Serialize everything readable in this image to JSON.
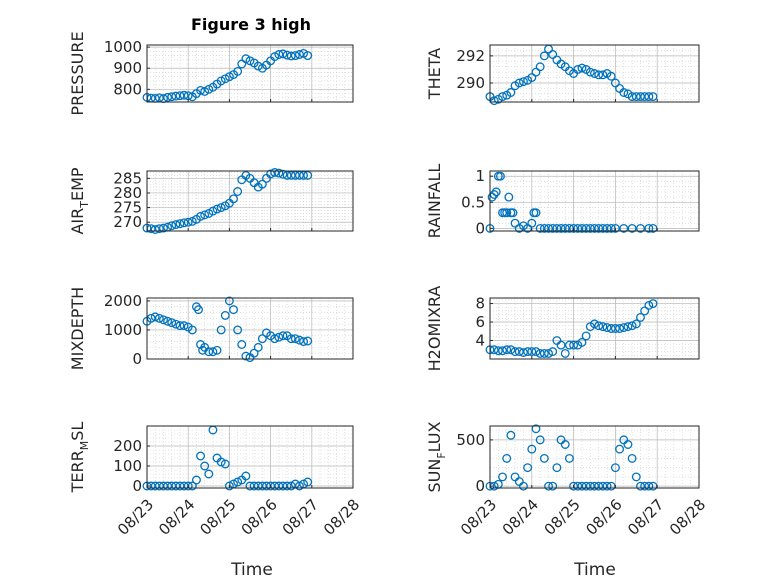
{
  "figure_title": "Figure 3 high",
  "marker_color": "#0072BD",
  "time_ticks": [
    "08/23",
    "08/24",
    "08/25",
    "08/26",
    "08/27",
    "08/28"
  ],
  "chart_data": [
    {
      "id": "pressure",
      "type": "scatter",
      "ylabel": "PRESSURE",
      "ylabel_main": "PRESSURE",
      "ylabel_sub": "",
      "ylabel_tail": "",
      "ylim": [
        740,
        1010
      ],
      "yticks": [
        800,
        900,
        1000
      ],
      "xlim": [
        0,
        5
      ],
      "grid": "on-minor",
      "x": [
        0,
        0.1,
        0.2,
        0.3,
        0.4,
        0.5,
        0.6,
        0.7,
        0.8,
        0.9,
        1.0,
        1.1,
        1.2,
        1.3,
        1.4,
        1.5,
        1.6,
        1.7,
        1.8,
        1.9,
        2.0,
        2.1,
        2.2,
        2.3,
        2.4,
        2.5,
        2.6,
        2.7,
        2.8,
        2.9,
        3.0,
        3.1,
        3.2,
        3.3,
        3.4,
        3.5,
        3.6,
        3.7,
        3.8,
        3.9
      ],
      "y": [
        762,
        758,
        757,
        760,
        756,
        762,
        765,
        768,
        770,
        772,
        770,
        765,
        780,
        795,
        790,
        800,
        810,
        825,
        840,
        850,
        860,
        870,
        885,
        920,
        945,
        935,
        925,
        910,
        900,
        915,
        935,
        955,
        965,
        968,
        962,
        958,
        960,
        965,
        970,
        960
      ]
    },
    {
      "id": "theta",
      "type": "scatter",
      "ylabel": "THETA",
      "ylabel_main": "THETA",
      "ylabel_sub": "",
      "ylabel_tail": "",
      "ylim": [
        288.6,
        292.8
      ],
      "yticks": [
        290,
        292
      ],
      "xlim": [
        0,
        5
      ],
      "grid": "on-minor",
      "x": [
        0,
        0.1,
        0.2,
        0.3,
        0.4,
        0.5,
        0.6,
        0.7,
        0.8,
        0.9,
        1.0,
        1.1,
        1.2,
        1.3,
        1.4,
        1.5,
        1.6,
        1.7,
        1.8,
        1.9,
        2.0,
        2.1,
        2.2,
        2.3,
        2.4,
        2.5,
        2.6,
        2.7,
        2.8,
        2.9,
        3.0,
        3.1,
        3.2,
        3.3,
        3.4,
        3.5,
        3.6,
        3.7,
        3.8,
        3.9
      ],
      "y": [
        289.0,
        288.7,
        288.8,
        289.0,
        289.1,
        289.3,
        289.8,
        290.0,
        290.1,
        290.2,
        290.4,
        290.8,
        291.2,
        292.0,
        292.5,
        292.1,
        291.7,
        291.4,
        291.2,
        290.9,
        290.7,
        291.0,
        291.1,
        291.0,
        290.8,
        290.7,
        290.6,
        290.6,
        290.7,
        290.5,
        290.0,
        289.6,
        289.3,
        289.2,
        289.0,
        289.0,
        289.0,
        289.0,
        289.0,
        289.0
      ]
    },
    {
      "id": "air_temp",
      "type": "scatter",
      "ylabel": "AIR_TEMP",
      "ylabel_main": "AIR",
      "ylabel_sub": "T",
      "ylabel_tail": "EMP",
      "ylim": [
        267,
        287.5
      ],
      "yticks": [
        270,
        275,
        280,
        285
      ],
      "xlim": [
        0,
        5
      ],
      "grid": "on-minor",
      "x": [
        0,
        0.1,
        0.2,
        0.3,
        0.4,
        0.5,
        0.6,
        0.7,
        0.8,
        0.9,
        1.0,
        1.1,
        1.2,
        1.3,
        1.4,
        1.5,
        1.6,
        1.7,
        1.8,
        1.9,
        2.0,
        2.1,
        2.2,
        2.3,
        2.4,
        2.5,
        2.6,
        2.7,
        2.8,
        2.9,
        3.0,
        3.1,
        3.2,
        3.3,
        3.4,
        3.5,
        3.6,
        3.7,
        3.8,
        3.9
      ],
      "y": [
        268.0,
        267.8,
        267.5,
        267.8,
        268.0,
        268.3,
        268.8,
        269.2,
        269.5,
        269.8,
        270.0,
        270.3,
        271.0,
        272.0,
        272.5,
        273.0,
        273.8,
        274.5,
        275.0,
        275.6,
        276.5,
        278.0,
        280.5,
        284.5,
        286.0,
        285.0,
        283.5,
        282.0,
        283.0,
        285.0,
        286.5,
        287.0,
        286.8,
        286.4,
        286.0,
        286.0,
        286.0,
        286.0,
        286.0,
        286.0
      ]
    },
    {
      "id": "rainfall",
      "type": "scatter",
      "ylabel": "RAINFALL",
      "ylabel_main": "RAINFALL",
      "ylabel_sub": "",
      "ylabel_tail": "",
      "ylim": [
        -0.05,
        1.1
      ],
      "yticks": [
        0,
        0.5,
        1
      ],
      "ytick_labels": [
        "0",
        "0.5",
        "1"
      ],
      "xlim": [
        0,
        5
      ],
      "grid": "on-minor",
      "x": [
        0,
        0.05,
        0.1,
        0.15,
        0.2,
        0.25,
        0.3,
        0.35,
        0.4,
        0.45,
        0.5,
        0.55,
        0.6,
        0.7,
        0.8,
        0.9,
        1.0,
        1.05,
        1.1,
        1.2,
        1.3,
        1.4,
        1.5,
        1.6,
        1.7,
        1.8,
        1.9,
        2.0,
        2.1,
        2.2,
        2.3,
        2.4,
        2.5,
        2.6,
        2.7,
        2.8,
        2.9,
        3.0,
        3.2,
        3.4,
        3.6,
        3.8,
        3.9
      ],
      "y": [
        0,
        0.6,
        0.65,
        0.7,
        1.0,
        1.0,
        0.3,
        0.3,
        0.3,
        0.6,
        0.3,
        0.3,
        0.1,
        0,
        0.05,
        0,
        0.1,
        0.3,
        0.3,
        0,
        0,
        0,
        0,
        0,
        0,
        0,
        0,
        0,
        0,
        0,
        0,
        0,
        0,
        0,
        0,
        0,
        0,
        0,
        0,
        0,
        0,
        0,
        0
      ]
    },
    {
      "id": "mixdepth",
      "type": "scatter",
      "ylabel": "MIXDEPTH",
      "ylabel_main": "MIXDEPTH",
      "ylabel_sub": "",
      "ylabel_tail": "",
      "ylim": [
        0,
        2100
      ],
      "yticks": [
        0,
        1000,
        2000
      ],
      "xlim": [
        0,
        5
      ],
      "grid": "on-minor",
      "x": [
        0,
        0.1,
        0.2,
        0.3,
        0.4,
        0.5,
        0.6,
        0.7,
        0.8,
        0.9,
        1.0,
        1.1,
        1.2,
        1.25,
        1.3,
        1.35,
        1.4,
        1.5,
        1.6,
        1.7,
        1.8,
        1.9,
        2.0,
        2.1,
        2.2,
        2.3,
        2.4,
        2.5,
        2.6,
        2.7,
        2.8,
        2.9,
        3.0,
        3.1,
        3.2,
        3.3,
        3.4,
        3.5,
        3.6,
        3.7,
        3.8,
        3.9
      ],
      "y": [
        1300,
        1400,
        1450,
        1400,
        1350,
        1300,
        1250,
        1200,
        1150,
        1150,
        1100,
        1000,
        1800,
        1700,
        500,
        300,
        400,
        250,
        250,
        300,
        1000,
        1500,
        2000,
        1700,
        1000,
        500,
        100,
        50,
        200,
        400,
        700,
        900,
        800,
        700,
        750,
        800,
        800,
        700,
        700,
        650,
        600,
        620
      ]
    },
    {
      "id": "h2omixra",
      "type": "scatter",
      "ylabel": "H2OMIXRA",
      "ylabel_main": "H2OMIXRA",
      "ylabel_sub": "",
      "ylabel_tail": "",
      "ylim": [
        2.0,
        8.6
      ],
      "yticks": [
        4,
        6,
        8
      ],
      "xlim": [
        0,
        5
      ],
      "grid": "on-minor",
      "x": [
        0,
        0.1,
        0.2,
        0.3,
        0.4,
        0.5,
        0.6,
        0.7,
        0.8,
        0.9,
        1.0,
        1.1,
        1.2,
        1.3,
        1.4,
        1.5,
        1.6,
        1.7,
        1.8,
        1.9,
        2.0,
        2.1,
        2.2,
        2.3,
        2.4,
        2.5,
        2.6,
        2.7,
        2.8,
        2.9,
        3.0,
        3.1,
        3.2,
        3.3,
        3.4,
        3.5,
        3.6,
        3.7,
        3.8,
        3.9
      ],
      "y": [
        3.0,
        3.0,
        2.9,
        2.9,
        3.0,
        3.0,
        2.8,
        2.8,
        2.7,
        2.8,
        2.8,
        2.8,
        2.6,
        2.6,
        2.6,
        2.8,
        4.0,
        3.5,
        2.6,
        3.5,
        3.5,
        3.5,
        3.8,
        4.5,
        5.5,
        5.8,
        5.6,
        5.5,
        5.4,
        5.3,
        5.3,
        5.3,
        5.4,
        5.5,
        5.6,
        5.8,
        6.5,
        7.2,
        7.8,
        8.0
      ]
    },
    {
      "id": "terr_msl",
      "type": "scatter",
      "ylabel": "TERR_MSL",
      "ylabel_main": "TERR",
      "ylabel_sub": "M",
      "ylabel_tail": "SL",
      "ylim": [
        -10,
        300
      ],
      "yticks": [
        0,
        100,
        200
      ],
      "xlim": [
        0,
        5
      ],
      "grid": "on-minor",
      "x": [
        0,
        0.1,
        0.2,
        0.3,
        0.4,
        0.5,
        0.6,
        0.7,
        0.8,
        0.9,
        1.0,
        1.1,
        1.2,
        1.3,
        1.4,
        1.5,
        1.6,
        1.7,
        1.8,
        1.9,
        2.0,
        2.1,
        2.2,
        2.3,
        2.4,
        2.5,
        2.6,
        2.7,
        2.8,
        2.9,
        3.0,
        3.1,
        3.2,
        3.3,
        3.4,
        3.5,
        3.6,
        3.7,
        3.8,
        3.9
      ],
      "y": [
        0,
        0,
        0,
        0,
        0,
        0,
        0,
        0,
        0,
        0,
        0,
        0,
        30,
        150,
        100,
        60,
        280,
        140,
        120,
        110,
        0,
        10,
        20,
        30,
        50,
        0,
        0,
        0,
        0,
        0,
        0,
        0,
        0,
        0,
        0,
        0,
        10,
        0,
        10,
        20
      ]
    },
    {
      "id": "sun_flux",
      "type": "scatter",
      "ylabel": "SUN_FLUX",
      "ylabel_main": "SUN",
      "ylabel_sub": "F",
      "ylabel_tail": "LUX",
      "ylim": [
        -20,
        650
      ],
      "yticks": [
        0,
        500
      ],
      "xlim": [
        0,
        5
      ],
      "grid": "on-minor",
      "x": [
        0,
        0.1,
        0.2,
        0.3,
        0.4,
        0.5,
        0.6,
        0.7,
        0.8,
        0.9,
        1.0,
        1.1,
        1.2,
        1.3,
        1.4,
        1.5,
        1.6,
        1.7,
        1.8,
        1.9,
        2.0,
        2.1,
        2.2,
        2.3,
        2.4,
        2.5,
        2.6,
        2.7,
        2.8,
        2.9,
        3.0,
        3.1,
        3.2,
        3.3,
        3.4,
        3.5,
        3.6,
        3.7,
        3.8,
        3.9
      ],
      "y": [
        0,
        0,
        20,
        100,
        300,
        550,
        100,
        50,
        0,
        200,
        400,
        620,
        500,
        300,
        0,
        0,
        200,
        500,
        450,
        300,
        0,
        0,
        0,
        0,
        0,
        0,
        0,
        0,
        0,
        0,
        200,
        400,
        500,
        450,
        300,
        100,
        0,
        0,
        0,
        0
      ]
    }
  ],
  "x_label": "Time"
}
